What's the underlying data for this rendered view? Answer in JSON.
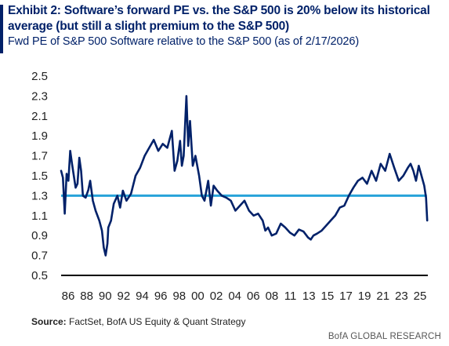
{
  "header": {
    "title": "Exhibit 2: Software’s forward PE vs. the S&P 500 is 20% below its historical average (but still a slight premium to the S&P 500)",
    "subtitle": "Fwd PE of S&P 500 Software relative to the S&P 500 (as of 2/17/2026)"
  },
  "footer": {
    "source_label": "Source:",
    "source_text": " FactSet, BofA US Equity & Quant Strategy",
    "credit": "BofA GLOBAL RESEARCH"
  },
  "colors": {
    "series": "#012169",
    "average": "#27a3d9",
    "title": "#012169",
    "axis": "#000000"
  },
  "chart_data": {
    "type": "line",
    "title": "Exhibit 2: Software’s forward PE vs. the S&P 500 is 20% below its historical average (but still a slight premium to the S&P 500)",
    "subtitle": "Fwd PE of S&P 500 Software relative to the S&P 500 (as of 2/17/2026)",
    "xlabel": "",
    "ylabel": "",
    "x_tick_labels": [
      "86",
      "88",
      "90",
      "92",
      "94",
      "96",
      "98",
      "00",
      "02",
      "04",
      "06",
      "08",
      "11",
      "13",
      "15",
      "17",
      "19",
      "21",
      "23",
      "25"
    ],
    "y_ticks": [
      0.5,
      0.7,
      0.9,
      1.1,
      1.3,
      1.5,
      1.7,
      1.9,
      2.1,
      2.3,
      2.5
    ],
    "xlim": [
      1985.8,
      2026.2
    ],
    "ylim": [
      0.5,
      2.5
    ],
    "grid": false,
    "legend": "none",
    "series": [
      {
        "x": [
          1985.8,
          1986.0,
          1986.2,
          1986.4,
          1986.6,
          1986.8,
          1987.0,
          1987.2,
          1987.4,
          1987.6,
          1987.8,
          1988.0,
          1988.2,
          1988.5,
          1988.8,
          1989.0,
          1989.3,
          1989.6,
          1990.0,
          1990.3,
          1990.5,
          1990.7,
          1990.9,
          1991.0,
          1991.3,
          1991.6,
          1992.0,
          1992.3,
          1992.6,
          1993.0,
          1993.5,
          1994.0,
          1994.5,
          1995.0,
          1995.5,
          1996.0,
          1996.5,
          1997.0,
          1997.5,
          1998.0,
          1998.3,
          1998.6,
          1998.9,
          1999.1,
          1999.3,
          1999.6,
          1999.8,
          2000.0,
          2000.3,
          2000.6,
          2001.0,
          2001.3,
          2001.6,
          2002.0,
          2002.3,
          2002.6,
          2003.0,
          2003.5,
          2004.0,
          2004.5,
          2005.0,
          2005.5,
          2006.0,
          2006.5,
          2007.0,
          2007.5,
          2008.0,
          2008.3,
          2008.6,
          2009.0,
          2009.5,
          2010.0,
          2010.5,
          2011.0,
          2011.5,
          2012.0,
          2012.5,
          2013.0,
          2013.3,
          2013.6,
          2014.0,
          2014.5,
          2015.0,
          2015.5,
          2016.0,
          2016.5,
          2017.0,
          2017.5,
          2018.0,
          2018.5,
          2019.0,
          2019.5,
          2020.0,
          2020.5,
          2021.0,
          2021.5,
          2022.0,
          2022.5,
          2023.0,
          2023.5,
          2024.0,
          2024.3,
          2024.6,
          2024.9,
          2025.2,
          2025.5,
          2025.8,
          2026.0,
          2026.13
        ],
        "y": [
          1.55,
          1.48,
          1.12,
          1.52,
          1.45,
          1.75,
          1.62,
          1.5,
          1.38,
          1.42,
          1.68,
          1.55,
          1.3,
          1.28,
          1.36,
          1.45,
          1.25,
          1.15,
          1.05,
          0.95,
          0.78,
          0.7,
          0.82,
          0.98,
          1.05,
          1.22,
          1.3,
          1.18,
          1.35,
          1.25,
          1.32,
          1.5,
          1.58,
          1.7,
          1.78,
          1.86,
          1.75,
          1.82,
          1.78,
          1.95,
          1.55,
          1.65,
          1.85,
          1.6,
          1.7,
          2.3,
          1.8,
          2.05,
          1.6,
          1.7,
          1.5,
          1.3,
          1.25,
          1.45,
          1.2,
          1.4,
          1.35,
          1.3,
          1.28,
          1.25,
          1.15,
          1.2,
          1.25,
          1.15,
          1.1,
          1.12,
          1.05,
          0.95,
          0.98,
          0.9,
          0.92,
          1.02,
          0.98,
          0.93,
          0.9,
          0.96,
          0.94,
          0.88,
          0.86,
          0.9,
          0.92,
          0.95,
          1.0,
          1.05,
          1.1,
          1.18,
          1.2,
          1.3,
          1.38,
          1.45,
          1.48,
          1.42,
          1.55,
          1.45,
          1.62,
          1.55,
          1.72,
          1.58,
          1.45,
          1.5,
          1.58,
          1.62,
          1.55,
          1.45,
          1.6,
          1.5,
          1.4,
          1.28,
          1.05
        ]
      },
      {
        "x": [
          1985.8,
          2026.1
        ],
        "y": [
          1.3,
          1.3
        ]
      }
    ]
  }
}
